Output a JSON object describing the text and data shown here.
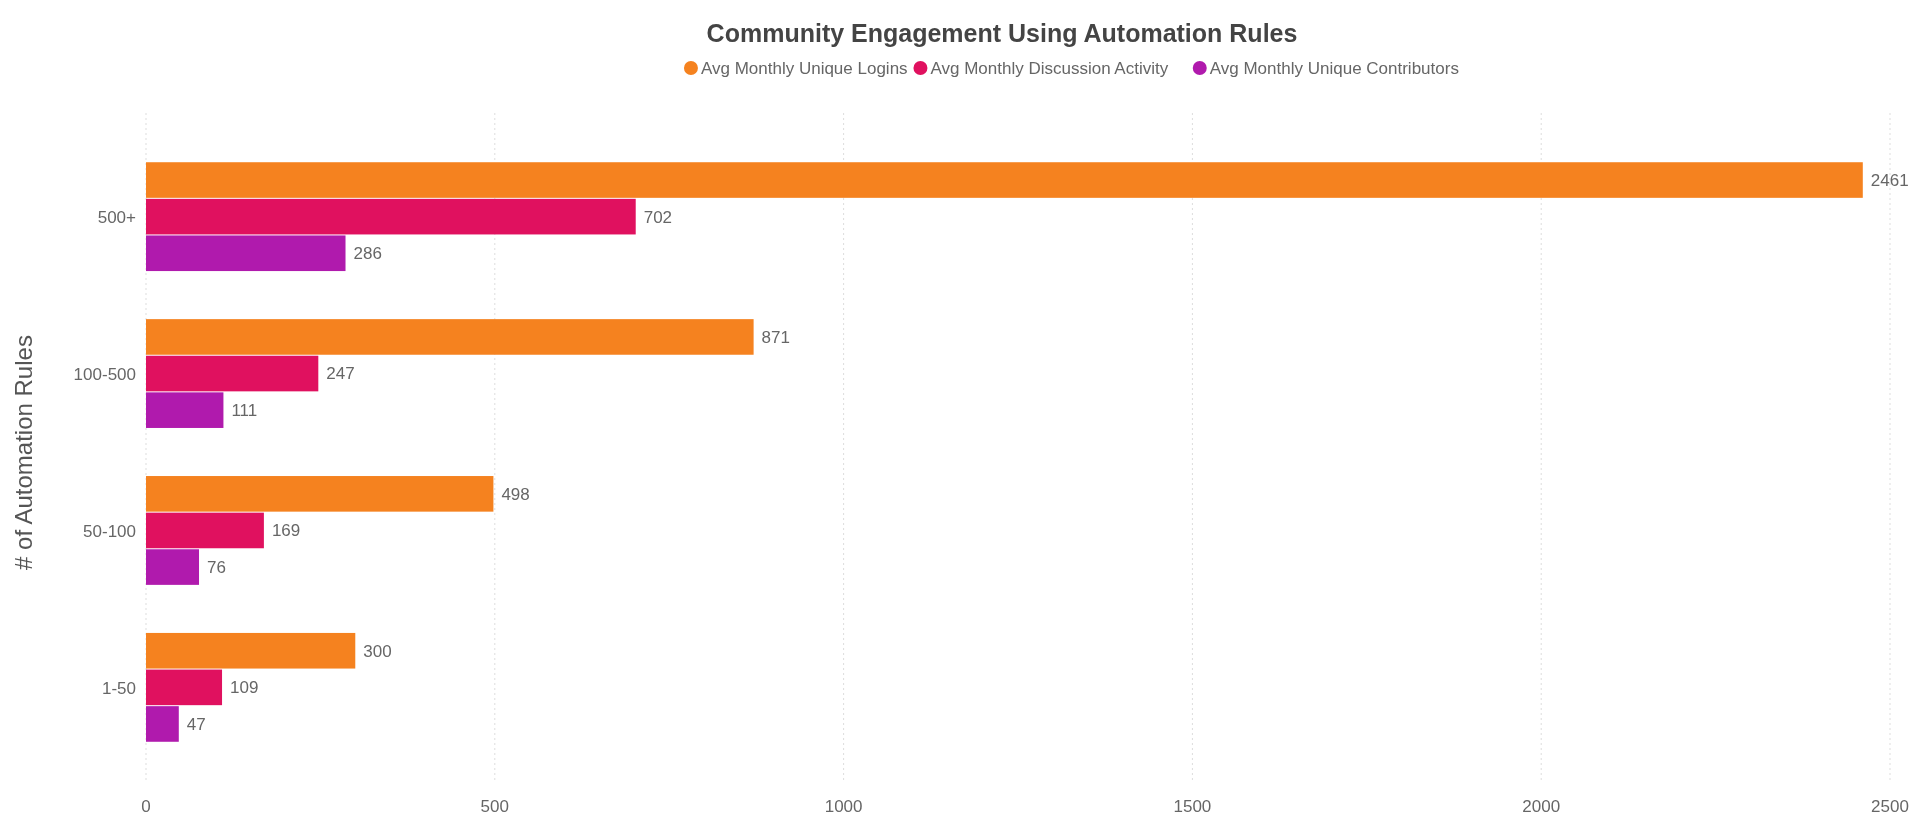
{
  "chart_data": {
    "type": "bar",
    "orientation": "horizontal",
    "title": "Community Engagement Using Automation Rules",
    "ylabel": "# of Automation Rules",
    "categories": [
      "500+",
      "100-500",
      "50-100",
      "1-50"
    ],
    "series": [
      {
        "name": "Avg Monthly Unique Logins",
        "color": "#f5821f",
        "values": [
          2461,
          871,
          498,
          300
        ]
      },
      {
        "name": "Avg Monthly Discussion Activity",
        "color": "#e0115f",
        "values": [
          702,
          247,
          169,
          109
        ]
      },
      {
        "name": "Avg Monthly Unique Contributors",
        "color": "#b01aad",
        "values": [
          286,
          111,
          76,
          47
        ]
      }
    ],
    "xlim": [
      0,
      2500
    ],
    "xticks": [
      0,
      500,
      1000,
      1500,
      2000,
      2500
    ],
    "grid": "x",
    "legend": "top",
    "data_labels": true
  }
}
